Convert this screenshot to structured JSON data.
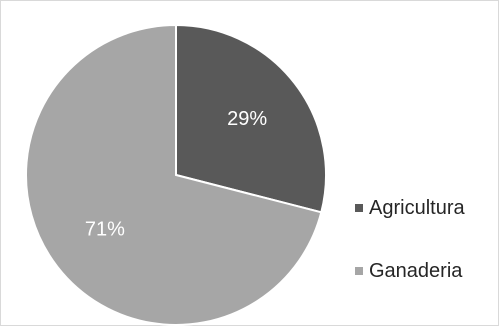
{
  "chart_data": {
    "type": "pie",
    "title": "",
    "categories": [
      "Agricultura",
      "Ganaderia"
    ],
    "values": [
      29,
      71
    ],
    "data_labels": [
      "29%",
      "71%"
    ],
    "colors": [
      "#595959",
      "#a6a6a6"
    ],
    "legend_position": "right",
    "start_angle": "top",
    "direction": "clockwise"
  }
}
